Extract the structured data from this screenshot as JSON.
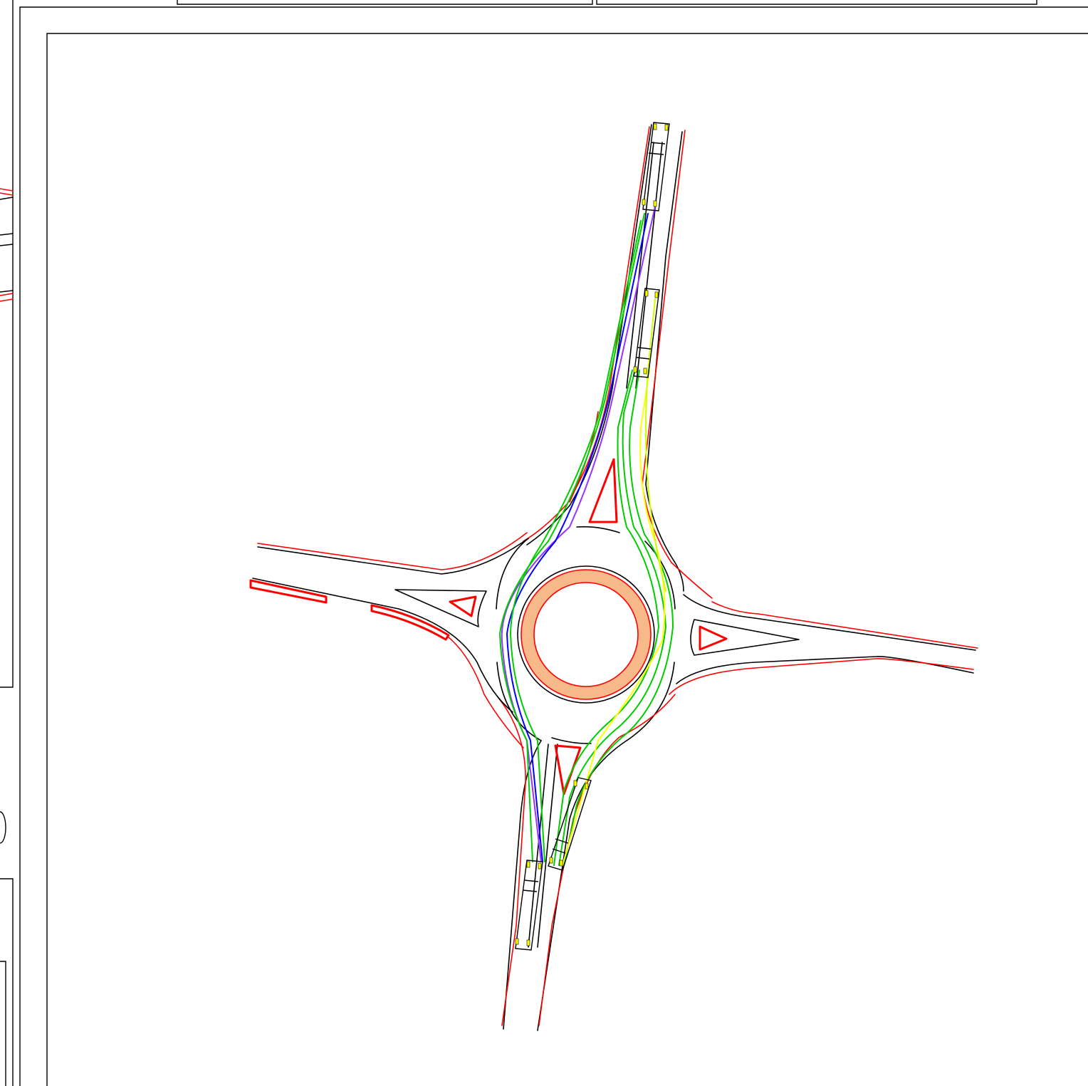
{
  "drawing": {
    "kind": "roundabout-swept-path-plan",
    "colors": {
      "outline": "#000000",
      "curb": "#ff0000",
      "central_island": "#f7b98a",
      "vehicle_path_primary": "#00cc00",
      "vehicle_path_secondary": "#9933ff",
      "vehicle_path_tertiary": "#0000ff",
      "vehicle_path_alt": "#ffff00",
      "vehicle_wheels": "#ffff00"
    },
    "legs": [
      "north",
      "east",
      "south",
      "west"
    ],
    "vehicle_count": 4
  }
}
